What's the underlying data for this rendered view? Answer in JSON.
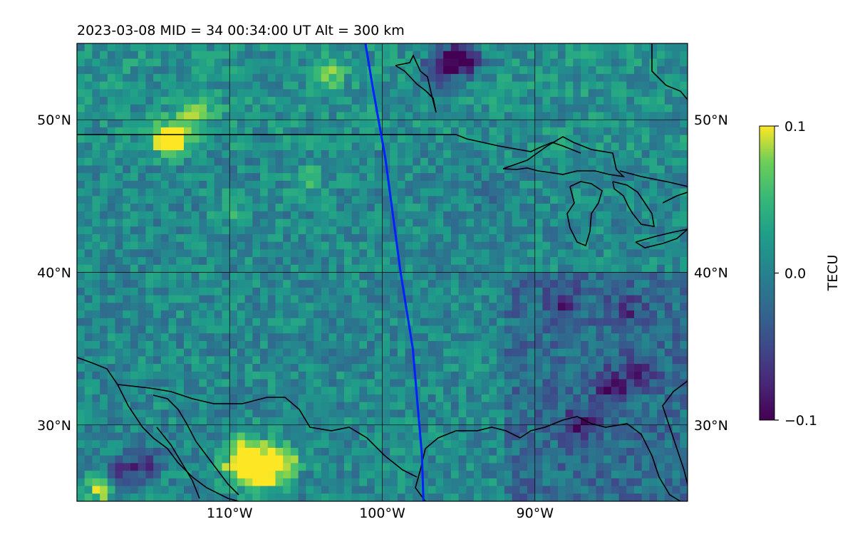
{
  "chart_data": {
    "type": "heatmap",
    "title": "2023-03-08  MID =  34    00:34:00  UT  Alt = 300 km",
    "xlabel": "",
    "ylabel": "",
    "x_range": [
      -120,
      -80
    ],
    "y_range": [
      25,
      55
    ],
    "x_ticks": [
      -110,
      -100,
      -90
    ],
    "x_tick_labels": [
      "110°W",
      "100°W",
      "90°W"
    ],
    "y_ticks": [
      30,
      40,
      50
    ],
    "y_tick_labels": [
      "30°N",
      "40°N",
      "50°N"
    ],
    "grid": true,
    "colormap": "viridis",
    "colorbar": {
      "label": "TECU",
      "range": [
        -0.1,
        0.1
      ],
      "ticks": [
        0.1,
        0.0,
        -0.1
      ],
      "tick_labels": [
        "0.1",
        "0.0",
        "−0.1"
      ]
    },
    "track": {
      "color": "#0022ff",
      "points": [
        [
          -101.1,
          55
        ],
        [
          -100.6,
          52
        ],
        [
          -99.8,
          47.5
        ],
        [
          -98.8,
          40
        ],
        [
          -98.0,
          35
        ],
        [
          -97.4,
          28
        ],
        [
          -97.3,
          25
        ]
      ]
    },
    "features": [
      {
        "lon": -113.5,
        "lat": 49.0,
        "value": 0.1
      },
      {
        "lon": -114.0,
        "lat": 48.5,
        "value": 0.09
      },
      {
        "lon": -112.0,
        "lat": 50.5,
        "value": 0.07
      },
      {
        "lon": -109.5,
        "lat": 27.0,
        "value": 0.1
      },
      {
        "lon": -108.0,
        "lat": 26.5,
        "value": 0.1
      },
      {
        "lon": -107.5,
        "lat": 27.8,
        "value": 0.1
      },
      {
        "lon": -106.5,
        "lat": 27.5,
        "value": 0.1
      },
      {
        "lon": -109.0,
        "lat": 28.5,
        "value": 0.09
      },
      {
        "lon": -118.5,
        "lat": 25.8,
        "value": 0.08
      },
      {
        "lon": -103.5,
        "lat": 53.0,
        "value": 0.06
      },
      {
        "lon": -96.5,
        "lat": 53.0,
        "value": -0.09
      },
      {
        "lon": -94.5,
        "lat": 53.8,
        "value": -0.09
      },
      {
        "lon": -95.5,
        "lat": 54.0,
        "value": -0.09
      },
      {
        "lon": -85.0,
        "lat": 32.5,
        "value": -0.08
      },
      {
        "lon": -87.0,
        "lat": 30.0,
        "value": -0.08
      },
      {
        "lon": -83.0,
        "lat": 33.5,
        "value": -0.07
      },
      {
        "lon": -88.0,
        "lat": 38.0,
        "value": -0.06
      },
      {
        "lon": -84.0,
        "lat": 37.5,
        "value": -0.05
      },
      {
        "lon": -115.5,
        "lat": 27.5,
        "value": -0.07
      },
      {
        "lon": -117.0,
        "lat": 27.0,
        "value": -0.07
      },
      {
        "lon": -92.5,
        "lat": 45.0,
        "value": -0.04
      },
      {
        "lon": -110.0,
        "lat": 44.0,
        "value": 0.04
      },
      {
        "lon": -105.0,
        "lat": 46.0,
        "value": 0.04
      }
    ]
  }
}
